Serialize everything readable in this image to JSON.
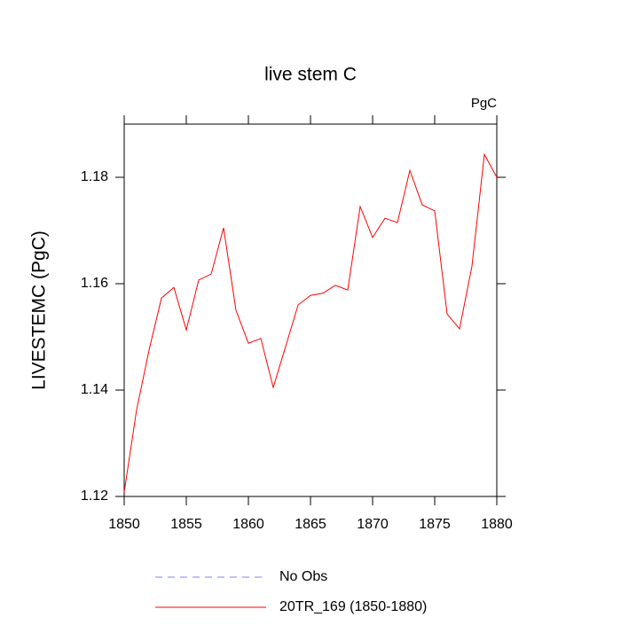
{
  "chart_data": {
    "type": "line",
    "title": "live stem C",
    "units_label": "PgC",
    "y_label": "LIVESTEMC  (PgC)",
    "x": [
      1850,
      1851,
      1852,
      1853,
      1854,
      1855,
      1856,
      1857,
      1858,
      1859,
      1860,
      1861,
      1862,
      1863,
      1864,
      1865,
      1866,
      1867,
      1868,
      1869,
      1870,
      1871,
      1872,
      1873,
      1874,
      1875,
      1876,
      1877,
      1878,
      1879,
      1880
    ],
    "series": [
      {
        "name": "No Obs",
        "color": "#8080ff",
        "dashed": true,
        "values": [
          null,
          null,
          null,
          null,
          null,
          null,
          null,
          null,
          null,
          null,
          null,
          null,
          null,
          null,
          null,
          null,
          null,
          null,
          null,
          null,
          null,
          null,
          null,
          null,
          null,
          null,
          null,
          null,
          null,
          null,
          null
        ]
      },
      {
        "name": "20TR_169 (1850-1880)",
        "color": "#ff0000",
        "dashed": false,
        "values": [
          1.1208,
          1.1363,
          1.1475,
          1.1573,
          1.1593,
          1.1513,
          1.1607,
          1.1618,
          1.1705,
          1.155,
          1.1488,
          1.1497,
          1.1405,
          1.1482,
          1.156,
          1.1578,
          1.1582,
          1.1597,
          1.1588,
          1.1745,
          1.1687,
          1.1723,
          1.1715,
          1.1813,
          1.1748,
          1.1737,
          1.1543,
          1.1515,
          1.1633,
          1.1843,
          1.18
        ]
      }
    ],
    "xlim": [
      1850,
      1880
    ],
    "xticks": [
      1850,
      1855,
      1860,
      1865,
      1870,
      1875,
      1880
    ],
    "ylim": [
      1.12,
      1.19
    ],
    "yticks": [
      1.12,
      1.14,
      1.16,
      1.18
    ]
  }
}
